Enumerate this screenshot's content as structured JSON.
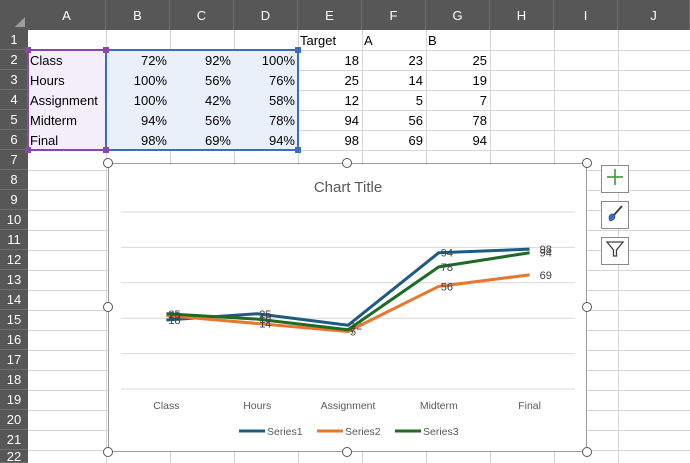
{
  "columns": [
    "A",
    "B",
    "C",
    "D",
    "E",
    "F",
    "G",
    "H",
    "I",
    "J"
  ],
  "rows": [
    "1",
    "2",
    "3",
    "4",
    "5",
    "6",
    "7",
    "8",
    "9",
    "10",
    "11",
    "12",
    "13",
    "14",
    "15",
    "16",
    "17",
    "18",
    "19",
    "20",
    "21",
    "22"
  ],
  "header_row": {
    "e": "Target",
    "f": "A",
    "g": "B"
  },
  "table": [
    {
      "label": "Class",
      "b": "72%",
      "c": "92%",
      "d": "100%",
      "e": "18",
      "f": "23",
      "g": "25"
    },
    {
      "label": "Hours",
      "b": "100%",
      "c": "56%",
      "d": "76%",
      "e": "25",
      "f": "14",
      "g": "19"
    },
    {
      "label": "Assignment",
      "b": "100%",
      "c": "42%",
      "d": "58%",
      "e": "12",
      "f": "5",
      "g": "7"
    },
    {
      "label": "Midterm",
      "b": "94%",
      "c": "56%",
      "d": "78%",
      "e": "94",
      "f": "56",
      "g": "78"
    },
    {
      "label": "Final",
      "b": "98%",
      "c": "69%",
      "d": "94%",
      "e": "98",
      "f": "69",
      "g": "94"
    }
  ],
  "chart_data": {
    "type": "line",
    "title": "Chart Title",
    "categories": [
      "Class",
      "Hours",
      "Assignment",
      "Midterm",
      "Final"
    ],
    "ylim": [
      -60,
      140
    ],
    "grid": true,
    "legend_position": "bottom",
    "series": [
      {
        "name": "Series1",
        "values": [
          18,
          25,
          12,
          94,
          98
        ],
        "color": "#1f5b80"
      },
      {
        "name": "Series2",
        "values": [
          23,
          14,
          5,
          56,
          69
        ],
        "color": "#e8762d"
      },
      {
        "name": "Series3",
        "values": [
          25,
          19,
          7,
          78,
          94
        ],
        "color": "#1e6b26"
      }
    ]
  },
  "side_buttons": [
    {
      "icon": "plus-icon",
      "color": "#3a9a3a"
    },
    {
      "icon": "paintbrush-icon",
      "color": "#3b6cc0"
    },
    {
      "icon": "filter-icon",
      "color": "#404040"
    }
  ]
}
